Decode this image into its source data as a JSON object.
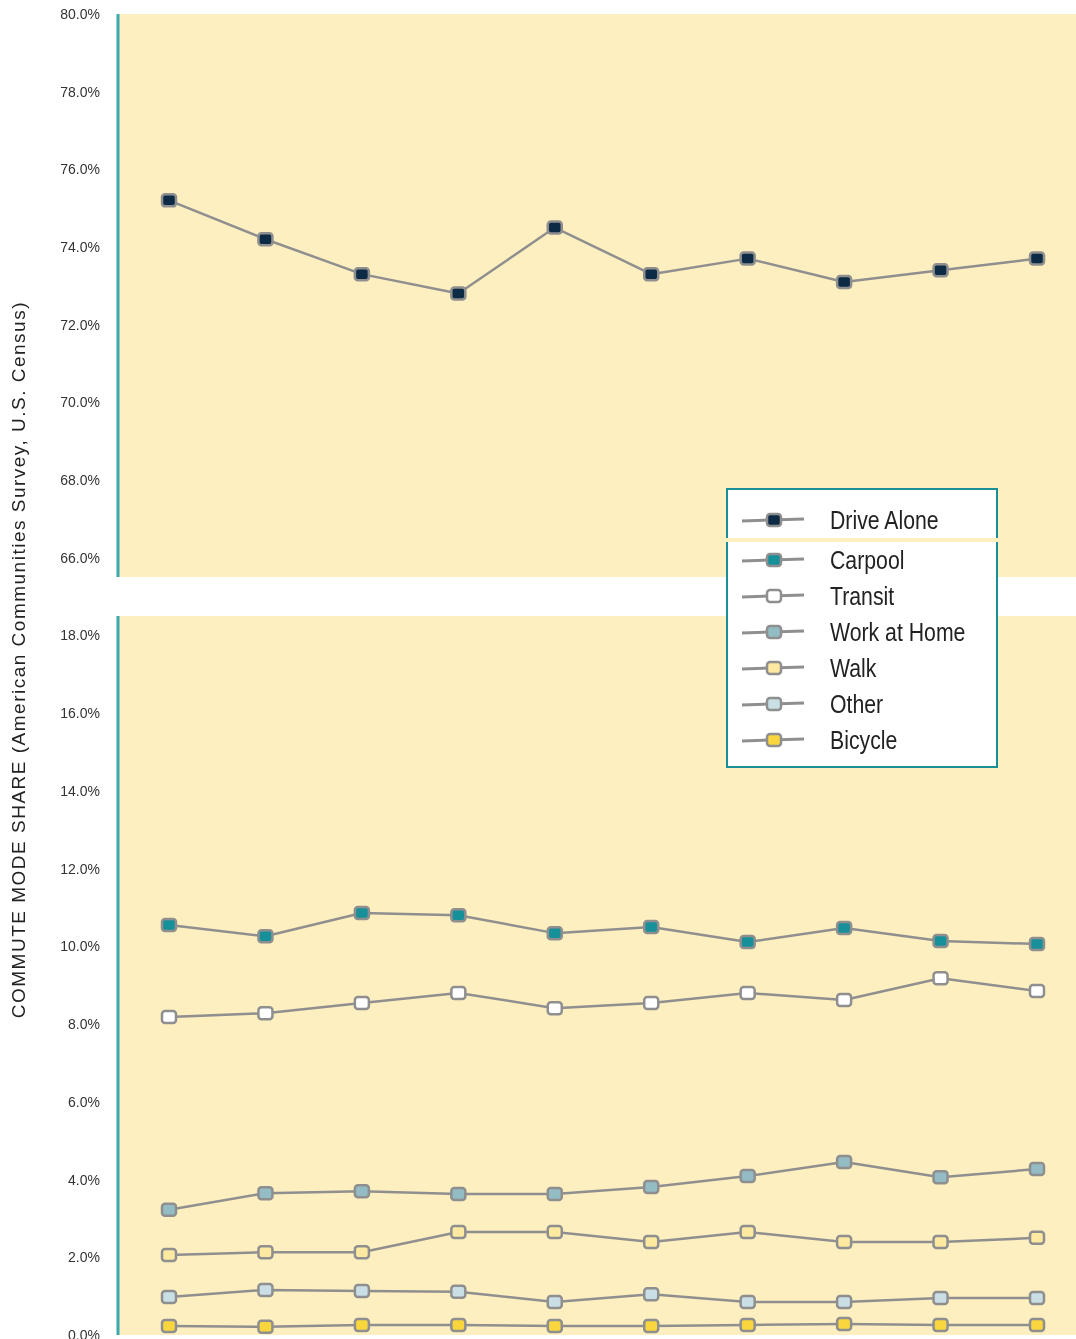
{
  "chart_data": [
    {
      "type": "line",
      "categories": [
        null,
        null,
        null,
        null,
        null,
        null,
        null,
        null,
        null,
        null
      ],
      "marker": "square",
      "line_style": "solid",
      "legend": "bottom right",
      "ylim": [
        65.5,
        80
      ],
      "yticks": [
        {
          "value": 66,
          "label": "66.0%"
        },
        {
          "value": 68,
          "label": "68.0%"
        },
        {
          "value": 70,
          "label": "70.0%"
        },
        {
          "value": 72,
          "label": "72.0%"
        },
        {
          "value": 74,
          "label": "74.0%"
        },
        {
          "value": 76,
          "label": "76.0%"
        },
        {
          "value": 78,
          "label": "78.0%"
        },
        {
          "value": 80,
          "label": "80.0%"
        }
      ],
      "series": [
        {
          "name": "Drive Alone",
          "color": "#8f8f8f",
          "colors": [
            "#0d2b45",
            "#0d2b45",
            "#0d2b45",
            "#0d2b45",
            "#0d2b45",
            "#0d2b45",
            "#0d2b45",
            "#0d2b45",
            "#0d2b45",
            "#0d2b45"
          ],
          "values": [
            75.2,
            74.2,
            73.3,
            72.8,
            74.5,
            73.3,
            73.7,
            73.1,
            73.4,
            73.7
          ]
        }
      ]
    },
    {
      "type": "line",
      "categories": [
        null,
        null,
        null,
        null,
        null,
        null,
        null,
        null,
        null,
        null
      ],
      "marker": "square",
      "line_style": "solid",
      "legend": "top right",
      "ylabel": "COMMUTE MODE SHARE (American Communities Survey, U.S. Census)",
      "ylim": [
        0,
        18.5
      ],
      "yticks": [
        {
          "value": 0,
          "label": "0.0%"
        },
        {
          "value": 2,
          "label": "2.0%"
        },
        {
          "value": 4,
          "label": "4.0%"
        },
        {
          "value": 6,
          "label": "6.0%"
        },
        {
          "value": 8,
          "label": "8.0%"
        },
        {
          "value": 10,
          "label": "10.0%"
        },
        {
          "value": 12,
          "label": "12.0%"
        },
        {
          "value": 14,
          "label": "14.0%"
        },
        {
          "value": 16,
          "label": "16.0%"
        },
        {
          "value": 18,
          "label": "18.0%"
        }
      ],
      "series": [
        {
          "name": "Carpool",
          "color": "#8f8f8f",
          "colors": [
            "#17909a",
            "#17909a",
            "#17909a",
            "#17909a",
            "#17909a",
            "#17909a",
            "#17909a",
            "#17909a",
            "#17909a",
            "#17909a"
          ],
          "values": [
            10.55,
            10.26,
            10.86,
            10.8,
            10.34,
            10.5,
            10.11,
            10.47,
            10.14,
            10.06
          ]
        },
        {
          "name": "Transit",
          "color": "#8f8f8f",
          "colors": [
            "#ffffff",
            "#ffffff",
            "#ffffff",
            "#ffffff",
            "#ffffff",
            "#ffffff",
            "#ffffff",
            "#ffffff",
            "#ffffff",
            "#ffffff"
          ],
          "values": [
            8.18,
            8.28,
            8.54,
            8.8,
            8.41,
            8.54,
            8.8,
            8.62,
            9.18,
            8.85
          ]
        },
        {
          "name": "Work at Home",
          "color": "#8f8f8f",
          "colors": [
            "#93bcc4",
            "#93bcc4",
            "#93bcc4",
            "#93bcc4",
            "#93bcc4",
            "#93bcc4",
            "#93bcc4",
            "#93bcc4",
            "#93bcc4",
            "#93bcc4"
          ],
          "values": [
            3.22,
            3.65,
            3.7,
            3.63,
            3.63,
            3.81,
            4.09,
            4.45,
            4.06,
            4.27
          ]
        },
        {
          "name": "Walk",
          "color": "#8f8f8f",
          "colors": [
            "#fde9a0",
            "#fde9a0",
            "#fde9a0",
            "#fde9a0",
            "#fde9a0",
            "#fde9a0",
            "#fde9a0",
            "#fde9a0",
            "#fde9a0",
            "#fde9a0"
          ],
          "values": [
            2.06,
            2.13,
            2.13,
            2.65,
            2.65,
            2.39,
            2.65,
            2.39,
            2.39,
            2.5
          ]
        },
        {
          "name": "Other",
          "color": "#8f8f8f",
          "colors": [
            "#c9dfe5",
            "#c9dfe5",
            "#c9dfe5",
            "#c9dfe5",
            "#c9dfe5",
            "#c9dfe5",
            "#c9dfe5",
            "#c9dfe5",
            "#c9dfe5",
            "#c9dfe5"
          ],
          "values": [
            0.98,
            1.16,
            1.13,
            1.11,
            0.85,
            1.05,
            0.85,
            0.85,
            0.95,
            0.95
          ]
        },
        {
          "name": "Bicycle",
          "color": "#8f8f8f",
          "colors": [
            "#f9d63d",
            "#f9d63d",
            "#f9d63d",
            "#f9d63d",
            "#f9d63d",
            "#f9d63d",
            "#f9d63d",
            "#f9d63d",
            "#f9d63d",
            "#f9d63d"
          ],
          "values": [
            0.23,
            0.21,
            0.26,
            0.26,
            0.23,
            0.23,
            0.26,
            0.28,
            0.26,
            0.26
          ]
        }
      ]
    }
  ]
}
